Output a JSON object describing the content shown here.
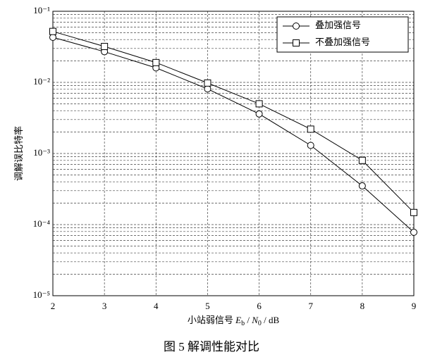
{
  "chart_data": {
    "type": "line",
    "x_label_parts": [
      "小站弱信号 ",
      "E",
      "b",
      " / ",
      "N",
      "0",
      " / dB"
    ],
    "y_label": "调解误比特率",
    "caption": "图 5 解调性能对比",
    "x": [
      2,
      3,
      4,
      5,
      6,
      7,
      8,
      9
    ],
    "xlim": [
      2,
      9
    ],
    "xticks": [
      2,
      3,
      4,
      5,
      6,
      7,
      8,
      9
    ],
    "ylim": [
      1e-05,
      0.1
    ],
    "log_y": true,
    "yticks": [
      {
        "value": 1e-05,
        "label": "10⁻⁵"
      },
      {
        "value": 0.0001,
        "label": "10⁻⁴"
      },
      {
        "value": 0.001,
        "label": "10⁻³"
      },
      {
        "value": 0.01,
        "label": "10⁻²"
      },
      {
        "value": 0.1,
        "label": "10⁻¹"
      }
    ],
    "grid": true,
    "legend": "upper right",
    "series": [
      {
        "name": "叠加强信号",
        "color": "#000000",
        "marker": "circle",
        "values": [
          0.043,
          0.027,
          0.016,
          0.0081,
          0.0036,
          0.0013,
          0.00035,
          7.8e-05
        ]
      },
      {
        "name": "不叠加强信号",
        "color": "#000000",
        "marker": "square",
        "values": [
          0.052,
          0.032,
          0.019,
          0.0098,
          0.005,
          0.0022,
          0.0008,
          0.000148
        ]
      }
    ]
  }
}
